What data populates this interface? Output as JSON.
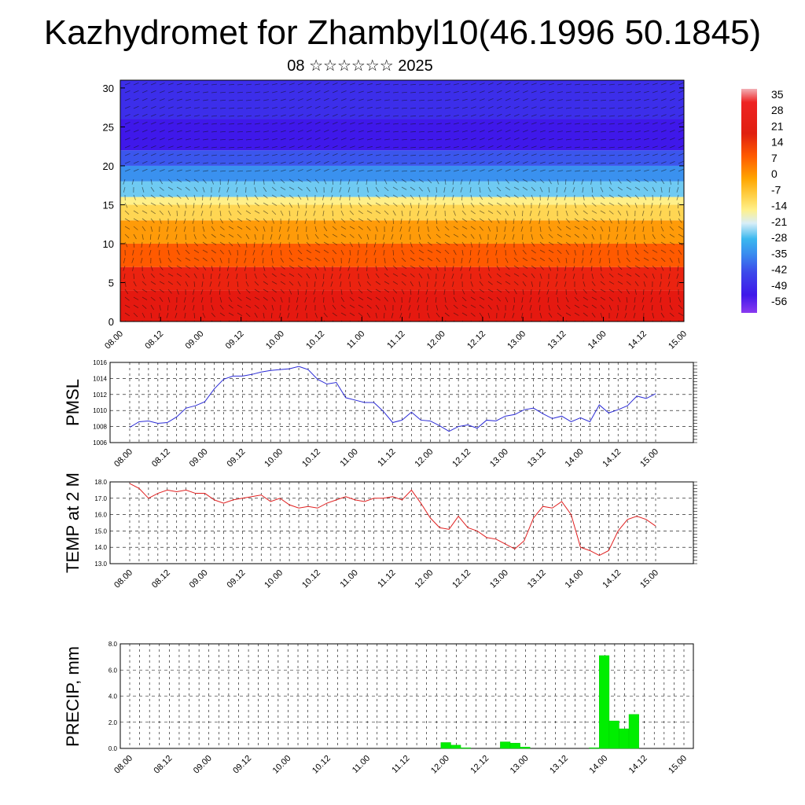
{
  "title": "Kazhydromet for Zhambyl10(46.1996 50.1845)",
  "subtitle": "08 ☆☆☆☆☆☆ 2025",
  "colors": {
    "pmsl_line": "#2b2bd6",
    "temp_line": "#e02020",
    "precip_bar": "#00ee00",
    "precip_bar_edge": "#00cc00"
  },
  "chart_data": [
    {
      "type": "heatmap",
      "title": "",
      "x_tick_labels": [
        "08.00",
        "08.12",
        "09.00",
        "09.12",
        "10.00",
        "10.12",
        "11.00",
        "11.12",
        "12.00",
        "12.12",
        "13.00",
        "13.12",
        "14.00",
        "14.12",
        "15.00"
      ],
      "y_tick_labels": [
        "0",
        "5",
        "10",
        "15",
        "20",
        "25",
        "30"
      ],
      "ylim": [
        0,
        30
      ],
      "colorbar_labels": [
        "35",
        "28",
        "21",
        "14",
        "7",
        "0",
        "-7",
        "-14",
        "-21",
        "-28",
        "-35",
        "-42",
        "-49",
        "-56"
      ],
      "colorbar_range": [
        -56,
        35
      ],
      "bands": [
        {
          "y_from": 0,
          "y_to": 4,
          "value": 30
        },
        {
          "y_from": 4,
          "y_to": 7,
          "value": 24
        },
        {
          "y_from": 7,
          "y_to": 10,
          "value": 14
        },
        {
          "y_from": 10,
          "y_to": 13,
          "value": 4
        },
        {
          "y_from": 13,
          "y_to": 15,
          "value": -8
        },
        {
          "y_from": 15,
          "y_to": 16,
          "value": -14
        },
        {
          "y_from": 16,
          "y_to": 18,
          "value": -24
        },
        {
          "y_from": 18,
          "y_to": 20,
          "value": -34
        },
        {
          "y_from": 20,
          "y_to": 22,
          "value": -44
        },
        {
          "y_from": 22,
          "y_to": 26,
          "value": -56
        },
        {
          "y_from": 26,
          "y_to": 31,
          "value": -50
        }
      ]
    },
    {
      "type": "line",
      "ylabel": "PMSL",
      "ylim": [
        1006,
        1016
      ],
      "y_ticks": [
        "1006",
        "1008",
        "1010",
        "1012",
        "1014",
        "1016"
      ],
      "x_tick_labels": [
        "08.00",
        "08.12",
        "09.00",
        "09.12",
        "10.00",
        "10.12",
        "11.00",
        "11.12",
        "12.00",
        "12.12",
        "13.00",
        "13.12",
        "14.00",
        "14.12",
        "15.00"
      ],
      "values": [
        1007.9,
        1008.6,
        1008.7,
        1008.4,
        1008.5,
        1009.2,
        1010.3,
        1010.6,
        1011.1,
        1012.7,
        1013.9,
        1014.3,
        1014.3,
        1014.5,
        1014.8,
        1015.0,
        1015.1,
        1015.2,
        1015.5,
        1015.1,
        1013.9,
        1013.3,
        1013.5,
        1011.6,
        1011.3,
        1011.0,
        1011.0,
        1009.9,
        1008.5,
        1008.8,
        1009.8,
        1008.8,
        1008.7,
        1008.1,
        1007.4,
        1008.0,
        1008.2,
        1007.8,
        1008.8,
        1008.7,
        1009.3,
        1009.5,
        1010.1,
        1010.3,
        1009.6,
        1009.0,
        1009.3,
        1008.6,
        1009.1,
        1008.6,
        1010.7,
        1009.7,
        1010.1,
        1010.6,
        1011.8,
        1011.5,
        1012.1
      ]
    },
    {
      "type": "line",
      "ylabel": "TEMP at 2 M",
      "ylim": [
        13.0,
        18.0
      ],
      "y_ticks": [
        "13.0",
        "14.0",
        "15.0",
        "16.0",
        "17.0",
        "18.0"
      ],
      "x_tick_labels": [
        "08.00",
        "08.12",
        "09.00",
        "09.12",
        "10.00",
        "10.12",
        "11.00",
        "11.12",
        "12.00",
        "12.12",
        "13.00",
        "13.12",
        "14.00",
        "14.12",
        "15.00"
      ],
      "values": [
        17.9,
        17.6,
        17.0,
        17.3,
        17.5,
        17.4,
        17.5,
        17.3,
        17.3,
        16.9,
        16.7,
        16.9,
        17.0,
        17.1,
        17.2,
        16.8,
        17.0,
        16.6,
        16.4,
        16.5,
        16.4,
        16.7,
        16.9,
        17.1,
        16.9,
        16.8,
        17.0,
        17.0,
        17.1,
        16.9,
        17.5,
        16.7,
        15.8,
        15.2,
        15.1,
        15.9,
        15.2,
        15.0,
        14.6,
        14.5,
        14.2,
        13.9,
        14.4,
        15.8,
        16.5,
        16.4,
        16.8,
        16.0,
        14.0,
        13.8,
        13.5,
        13.8,
        15.0,
        15.7,
        15.9,
        15.7,
        15.3
      ]
    },
    {
      "type": "bar",
      "ylabel": "PRECIP, mm",
      "ylim": [
        0,
        8.0
      ],
      "y_ticks": [
        "0.0",
        "2.0",
        "4.0",
        "6.0",
        "8.0"
      ],
      "x_tick_labels": [
        "08.00",
        "08.12",
        "09.00",
        "09.12",
        "10.00",
        "10.12",
        "11.00",
        "11.12",
        "12.00",
        "12.12",
        "13.00",
        "13.12",
        "14.00",
        "14.12",
        "15.00"
      ],
      "values": [
        0,
        0,
        0,
        0,
        0,
        0,
        0,
        0,
        0,
        0,
        0,
        0,
        0,
        0,
        0,
        0,
        0,
        0,
        0,
        0,
        0,
        0,
        0,
        0,
        0,
        0,
        0,
        0,
        0,
        0,
        0,
        0,
        0.45,
        0.25,
        0.05,
        0,
        0,
        0,
        0.5,
        0.4,
        0.1,
        0,
        0,
        0,
        0,
        0,
        0,
        0.05,
        7.1,
        2.1,
        1.5,
        2.6,
        0,
        0,
        0,
        0
      ]
    }
  ]
}
